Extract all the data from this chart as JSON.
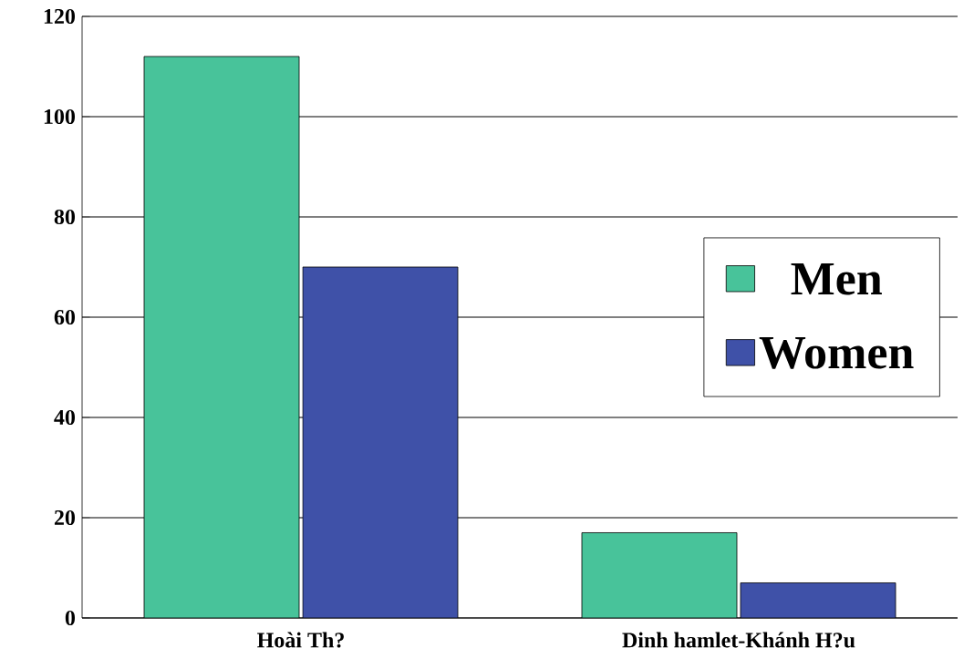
{
  "chart_data": {
    "type": "bar",
    "categories": [
      "Hoài Th?",
      "Dinh hamlet-Khánh H?u"
    ],
    "series": [
      {
        "name": "Men",
        "color": "#48c39a",
        "values": [
          112,
          17
        ]
      },
      {
        "name": "Women",
        "color": "#3f51a8",
        "values": [
          70,
          7
        ]
      }
    ],
    "ylim": [
      0,
      120
    ],
    "yticks": [
      0,
      20,
      40,
      60,
      80,
      100,
      120
    ],
    "grid": "y",
    "legend": "right"
  }
}
